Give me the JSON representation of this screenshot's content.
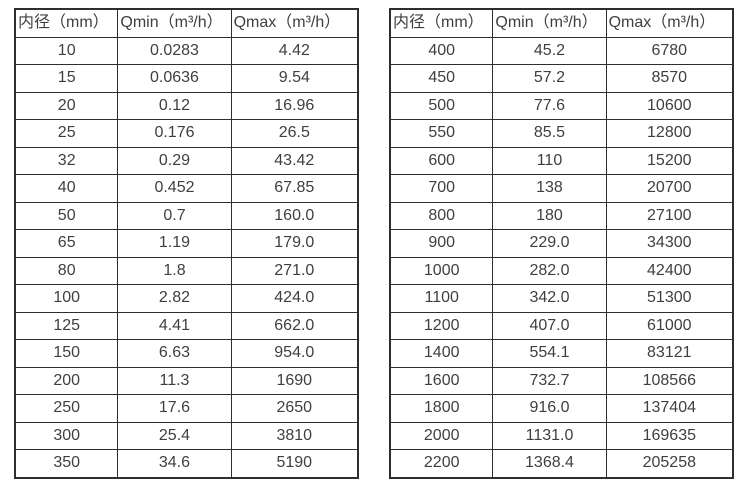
{
  "page": {
    "background": "#ffffff",
    "text_color": "#3f3f3f",
    "border_color": "#2e2e2e"
  },
  "tables": [
    {
      "name": "flow-table-small-diameters",
      "headers": [
        "内径（mm）",
        "Qmin（m³/h）",
        "Qmax（m³/h）"
      ],
      "rows": [
        [
          "10",
          "0.0283",
          "4.42"
        ],
        [
          "15",
          "0.0636",
          "9.54"
        ],
        [
          "20",
          "0.12",
          "16.96"
        ],
        [
          "25",
          "0.176",
          "26.5"
        ],
        [
          "32",
          "0.29",
          "43.42"
        ],
        [
          "40",
          "0.452",
          "67.85"
        ],
        [
          "50",
          "0.7",
          "160.0"
        ],
        [
          "65",
          "1.19",
          "179.0"
        ],
        [
          "80",
          "1.8",
          "271.0"
        ],
        [
          "100",
          "2.82",
          "424.0"
        ],
        [
          "125",
          "4.41",
          "662.0"
        ],
        [
          "150",
          "6.63",
          "954.0"
        ],
        [
          "200",
          "11.3",
          "1690"
        ],
        [
          "250",
          "17.6",
          "2650"
        ],
        [
          "300",
          "25.4",
          "3810"
        ],
        [
          "350",
          "34.6",
          "5190"
        ]
      ]
    },
    {
      "name": "flow-table-large-diameters",
      "headers": [
        "内径（mm）",
        "Qmin（m³/h）",
        "Qmax（m³/h）"
      ],
      "rows": [
        [
          "400",
          "45.2",
          "6780"
        ],
        [
          "450",
          "57.2",
          "8570"
        ],
        [
          "500",
          "77.6",
          "10600"
        ],
        [
          "550",
          "85.5",
          "12800"
        ],
        [
          "600",
          "110",
          "15200"
        ],
        [
          "700",
          "138",
          "20700"
        ],
        [
          "800",
          "180",
          "27100"
        ],
        [
          "900",
          "229.0",
          "34300"
        ],
        [
          "1000",
          "282.0",
          "42400"
        ],
        [
          "1100",
          "342.0",
          "51300"
        ],
        [
          "1200",
          "407.0",
          "61000"
        ],
        [
          "1400",
          "554.1",
          "83121"
        ],
        [
          "1600",
          "732.7",
          "108566"
        ],
        [
          "1800",
          "916.0",
          "137404"
        ],
        [
          "2000",
          "1131.0",
          "169635"
        ],
        [
          "2200",
          "1368.4",
          "205258"
        ]
      ]
    }
  ]
}
